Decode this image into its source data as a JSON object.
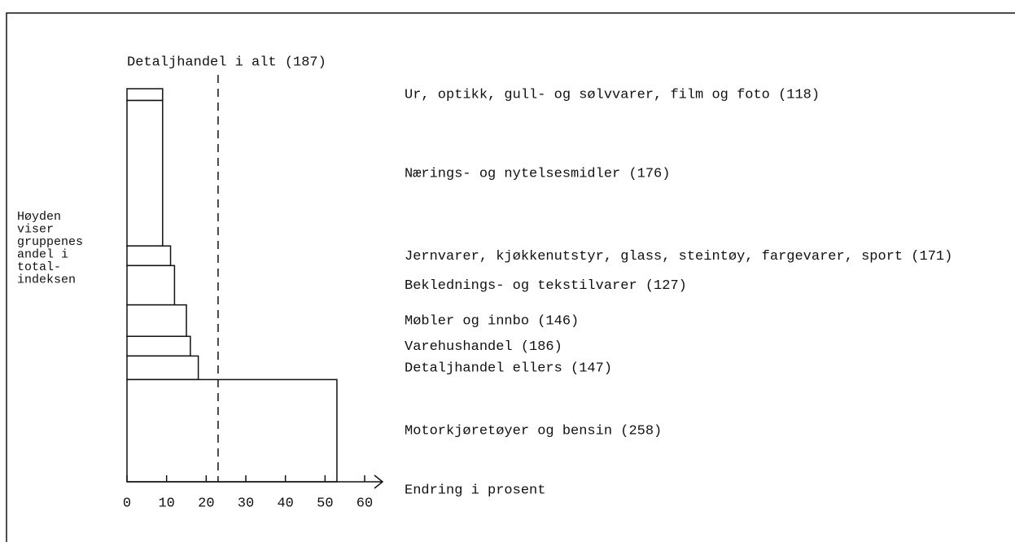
{
  "chart_data": {
    "type": "variable-width-bar",
    "categories": [
      "Ur, optikk, gull- og sølvvarer, film og foto (118)",
      "Nærings- og nytelsesmidler (176)",
      "Jernvarer, kjøkkenutstyr, glass, steintøy, fargevarer, sport (171)",
      "Beklednings- og tekstilvarer (127)",
      "Møbler og innbo (146)",
      "Varehushandel (186)",
      "Detaljhandel ellers (147)",
      "Motorkjøretøyer og bensin (258)"
    ],
    "values": [
      9,
      9,
      11,
      12,
      15,
      16,
      18,
      53
    ],
    "weights": [
      3,
      37,
      5,
      10,
      8,
      5,
      6,
      26
    ],
    "reference": {
      "label": "Detaljhandel i alt (187)",
      "value": 23
    },
    "weight_note": [
      "Høyden",
      "viser",
      "gruppenes",
      "andel i",
      "total-",
      "indeksen"
    ],
    "xlabel": "Endring i prosent",
    "xlim": [
      0,
      60
    ],
    "xticks": [
      0,
      10,
      20,
      30,
      40,
      50,
      60
    ],
    "color": "#ffffff",
    "stroke": "#111111"
  }
}
